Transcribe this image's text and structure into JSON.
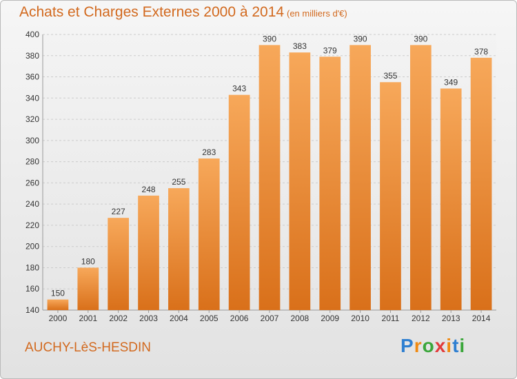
{
  "header": {
    "title": "Achats et Charges Externes 2000 à 2014",
    "unit": "(en milliers d'€)"
  },
  "footer": {
    "commune": "AUCHY-LèS-HESDIN",
    "brand": "Proxiti",
    "brand_colors": [
      "#2e7fd1",
      "#f08a12",
      "#3aa63a",
      "#e23b3b",
      "#f08a12",
      "#2e7fd1",
      "#3aa63a"
    ]
  },
  "chart_data": {
    "type": "bar",
    "title": "Achats et Charges Externes 2000 à 2014",
    "subtitle": "(en milliers d'€)",
    "categories": [
      "2000",
      "2001",
      "2002",
      "2003",
      "2004",
      "2005",
      "2006",
      "2007",
      "2008",
      "2009",
      "2010",
      "2011",
      "2012",
      "2013",
      "2014"
    ],
    "values": [
      150,
      180,
      227,
      248,
      255,
      283,
      343,
      390,
      383,
      379,
      390,
      355,
      390,
      349,
      378
    ],
    "ylim": [
      140,
      400
    ],
    "yticks": [
      140,
      160,
      180,
      200,
      220,
      240,
      260,
      280,
      300,
      320,
      340,
      360,
      380,
      400
    ],
    "grid": true,
    "bar_color": "#f08c2a",
    "bar_color_light": "#f7a85a",
    "bar_color_dark": "#d9701a",
    "label_color": "#333333"
  }
}
